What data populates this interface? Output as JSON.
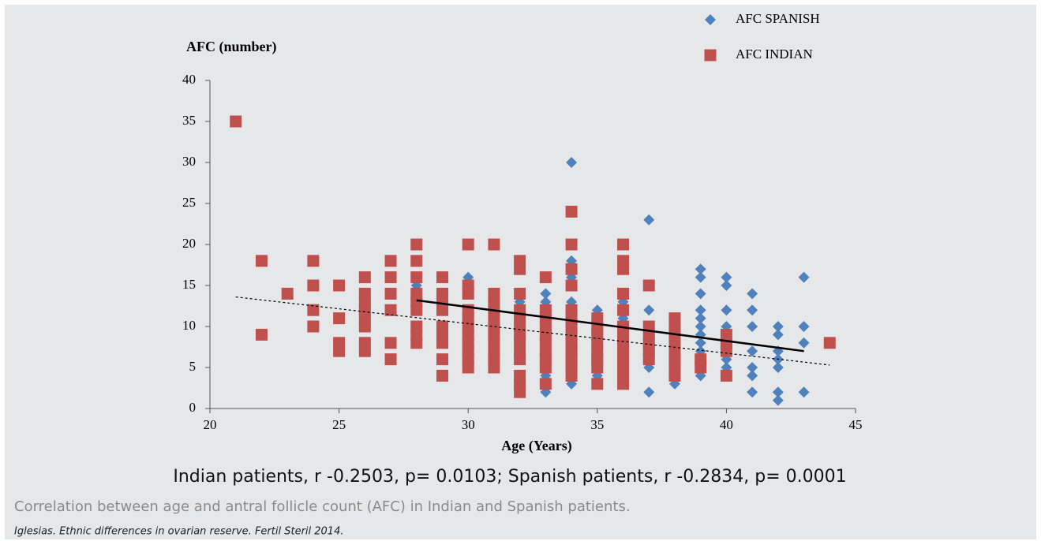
{
  "chart_data": {
    "type": "scatter",
    "y_label": "AFC (number)",
    "x_label": "Age (Years)",
    "annotation": "Indian patients, r -0.2503, p= 0.0103; Spanish patients, r -0.2834, p= 0.0001",
    "caption": "Correlation between age and antral follicle count (AFC) in Indian and Spanish patients.",
    "source": "Iglesias. Ethnic differences in ovarian reserve. Fertil Steril 2014.",
    "xlim": [
      20,
      45
    ],
    "xticks": [
      20,
      25,
      30,
      35,
      40,
      45
    ],
    "ylim": [
      0,
      40
    ],
    "yticks": [
      0,
      5,
      10,
      15,
      20,
      25,
      30,
      35,
      40
    ],
    "legend": "top-right",
    "series": [
      {
        "name": "AFC SPANISH",
        "color": "#4f81bd",
        "marker": "diamond",
        "x": [
          28,
          30,
          32,
          33,
          33,
          33,
          33,
          34,
          34,
          34,
          34,
          34,
          35,
          35,
          36,
          36,
          36,
          37,
          37,
          37,
          37,
          37,
          38,
          39,
          39,
          39,
          39,
          39,
          39,
          39,
          39,
          39,
          39,
          39,
          40,
          40,
          40,
          40,
          40,
          40,
          40,
          41,
          41,
          41,
          41,
          41,
          41,
          41,
          42,
          42,
          42,
          42,
          42,
          42,
          42,
          43,
          43,
          43,
          43
        ],
        "y": [
          15,
          16,
          13,
          14,
          13,
          4,
          2,
          30,
          18,
          16,
          13,
          3,
          12,
          4,
          13,
          11,
          7,
          23,
          12,
          9,
          5,
          2,
          3,
          17,
          16,
          14,
          12,
          11,
          10,
          9,
          8,
          7,
          6,
          4,
          16,
          15,
          12,
          10,
          8,
          6,
          5,
          14,
          12,
          10,
          7,
          5,
          4,
          2,
          10,
          9,
          7,
          6,
          5,
          2,
          1,
          16,
          10,
          8,
          2
        ]
      },
      {
        "name": "AFC INDIAN",
        "color": "#c0504d",
        "marker": "square",
        "x": [
          21,
          22,
          22,
          23,
          24,
          24,
          24,
          24,
          25,
          25,
          25,
          25,
          26,
          26,
          26,
          26,
          26,
          26,
          26,
          26,
          27,
          27,
          27,
          27,
          27,
          27,
          28,
          28,
          28,
          28,
          28,
          28,
          28,
          28,
          28,
          29,
          29,
          29,
          29,
          29,
          29,
          29,
          29,
          29,
          30,
          30,
          30,
          30,
          30,
          30,
          30,
          30,
          30,
          30,
          30,
          31,
          31,
          31,
          31,
          31,
          31,
          31,
          31,
          31,
          31,
          31,
          32,
          32,
          32,
          32,
          32,
          32,
          32,
          32,
          32,
          32,
          32,
          32,
          32,
          33,
          33,
          33,
          33,
          33,
          33,
          33,
          33,
          33,
          33,
          34,
          34,
          34,
          34,
          34,
          34,
          34,
          34,
          34,
          34,
          34,
          34,
          34,
          35,
          35,
          35,
          35,
          35,
          35,
          35,
          35,
          36,
          36,
          36,
          36,
          36,
          36,
          36,
          36,
          36,
          36,
          36,
          36,
          36,
          37,
          37,
          37,
          37,
          37,
          37,
          38,
          38,
          38,
          38,
          38,
          38,
          38,
          38,
          39,
          39,
          40,
          40,
          40,
          40,
          44
        ],
        "y": [
          35,
          18,
          9,
          14,
          18,
          15,
          12,
          10,
          15,
          11,
          8,
          7,
          16,
          14,
          13,
          12,
          11,
          10,
          8,
          7,
          18,
          16,
          14,
          12,
          8,
          6,
          20,
          18,
          16,
          14,
          13,
          12,
          10,
          9,
          8,
          16,
          14,
          13,
          12,
          10,
          9,
          8,
          6,
          4,
          20,
          15,
          14,
          12,
          11,
          10,
          9,
          8,
          7,
          6,
          5,
          20,
          14,
          13,
          12,
          11,
          10,
          9,
          8,
          7,
          6,
          5,
          18,
          17,
          14,
          12,
          11,
          10,
          9,
          8,
          7,
          6,
          4,
          3,
          2,
          16,
          12,
          11,
          10,
          9,
          8,
          7,
          6,
          5,
          3,
          24,
          20,
          17,
          15,
          12,
          11,
          10,
          9,
          8,
          7,
          6,
          5,
          4,
          11,
          10,
          9,
          8,
          7,
          6,
          5,
          3,
          20,
          18,
          17,
          14,
          12,
          10,
          9,
          8,
          7,
          6,
          5,
          4,
          3,
          15,
          10,
          9,
          8,
          7,
          6,
          11,
          10,
          9,
          8,
          7,
          6,
          5,
          4,
          6,
          5,
          9,
          8,
          7,
          4,
          8
        ]
      }
    ],
    "trend_lines": [
      {
        "x": [
          28,
          43
        ],
        "y": [
          13.2,
          7
        ],
        "style": "solid",
        "color": "#000000"
      },
      {
        "x": [
          21,
          44
        ],
        "y": [
          13.6,
          5.3
        ],
        "style": "dotted",
        "color": "#000000"
      }
    ]
  }
}
